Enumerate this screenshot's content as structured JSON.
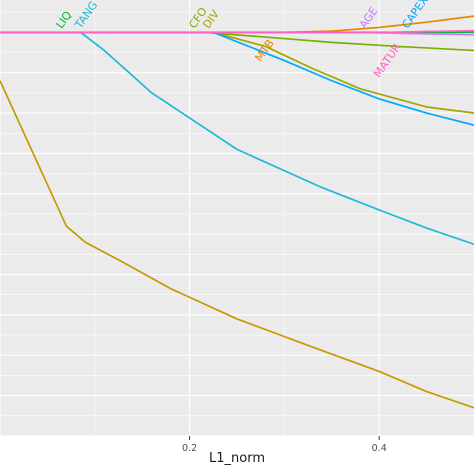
{
  "chart_data": {
    "type": "line",
    "xlabel": "L1_norm",
    "ylabel": "",
    "grid": true,
    "xlim": [
      0.0,
      0.5
    ],
    "ylim": [
      -1.0,
      0.08
    ],
    "x_ticks": [
      {
        "value": 0.2,
        "label": "0.2"
      },
      {
        "value": 0.4,
        "label": "0.4"
      }
    ],
    "series": [
      {
        "name": "LIQ",
        "color": "#00BA38",
        "label_at": 0.065,
        "x": [
          0.0,
          0.11,
          0.18,
          0.25,
          0.35,
          0.45,
          0.5
        ],
        "y": [
          0.0,
          0.0,
          0.0,
          0.0,
          0.0,
          0.0,
          0.0
        ]
      },
      {
        "name": "TANG",
        "color": "#1FB8D6",
        "label_at": 0.085,
        "x": [
          0.0,
          0.085,
          0.11,
          0.16,
          0.25,
          0.34,
          0.4,
          0.45,
          0.5
        ],
        "y": [
          0.0,
          0.0,
          -0.045,
          -0.15,
          -0.29,
          -0.385,
          -0.44,
          -0.485,
          -0.525
        ]
      },
      {
        "name": "CFO",
        "color": "#7CAE00",
        "label_at": 0.205,
        "x": [
          0.0,
          0.215,
          0.27,
          0.35,
          0.42,
          0.5
        ],
        "y": [
          0.0,
          0.0,
          -0.01,
          -0.025,
          -0.035,
          -0.045
        ]
      },
      {
        "name": "DIV",
        "color": "#A3A500",
        "label_at": 0.22,
        "x": [
          0.0,
          0.225,
          0.28,
          0.33,
          0.38,
          0.45,
          0.5
        ],
        "y": [
          0.0,
          0.0,
          -0.035,
          -0.09,
          -0.14,
          -0.185,
          -0.2
        ]
      },
      {
        "name": "MTB",
        "color": "#E58700",
        "label_at": 0.275,
        "x": [
          0.0,
          0.3,
          0.35,
          0.4,
          0.45,
          0.5
        ],
        "y": [
          0.0,
          0.0,
          0.003,
          0.012,
          0.025,
          0.04
        ]
      },
      {
        "name": "AGE",
        "color": "#C77CFF",
        "label_at": 0.385,
        "x": [
          0.0,
          0.38,
          0.43,
          0.5
        ],
        "y": [
          0.0,
          0.0,
          -0.003,
          -0.006
        ]
      },
      {
        "name": "MATUR",
        "color": "#FF61C3",
        "label_at": 0.4,
        "x": [
          0.0,
          0.41,
          0.45,
          0.5
        ],
        "y": [
          0.0,
          0.0,
          0.002,
          0.004
        ]
      },
      {
        "name": "CAPEX",
        "color": "#00A9FF",
        "label_at": 0.43,
        "x": [
          0.0,
          0.225,
          0.3,
          0.35,
          0.4,
          0.45,
          0.5
        ],
        "y": [
          0.0,
          0.0,
          -0.07,
          -0.12,
          -0.165,
          -0.2,
          -0.23
        ]
      },
      {
        "name": "",
        "color": "#C49A00",
        "x": [
          0.0,
          0.07,
          0.09,
          0.13,
          0.18,
          0.25,
          0.33,
          0.4,
          0.45,
          0.5
        ],
        "y": [
          -0.12,
          -0.48,
          -0.52,
          -0.57,
          -0.635,
          -0.71,
          -0.78,
          -0.84,
          -0.89,
          -0.93
        ]
      }
    ]
  }
}
